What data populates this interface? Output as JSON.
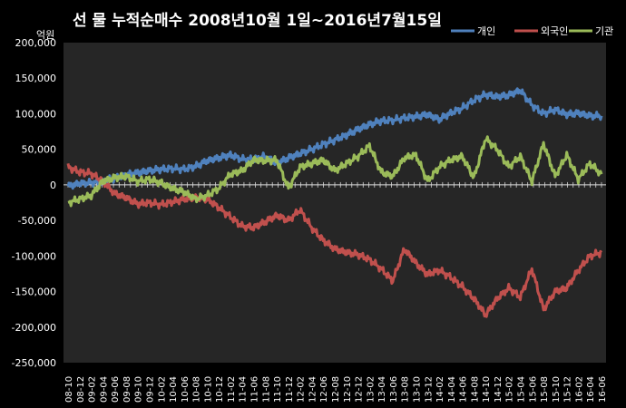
{
  "chart_data": {
    "type": "line",
    "title": "선 물 누적순매수 2008년10월 1일~2016년7월15일",
    "ylabel": "억원",
    "xlabel": "",
    "ylim": [
      -250000,
      200000
    ],
    "yticks": [
      200000,
      150000,
      100000,
      50000,
      0,
      -50000,
      -100000,
      -150000,
      -200000,
      -250000
    ],
    "ytick_labels": [
      "200,000",
      "150,000",
      "100,000",
      "50,000",
      "0",
      "-50,000",
      "-100,000",
      "-150,000",
      "-200,000",
      "-250,000"
    ],
    "x_tick_labels": [
      "08-10",
      "08-12",
      "09-02",
      "09-04",
      "09-06",
      "09-08",
      "09-10",
      "09-12",
      "10-02",
      "10-04",
      "10-06",
      "10-08",
      "10-10",
      "10-12",
      "11-02",
      "11-04",
      "11-06",
      "11-08",
      "11-10",
      "11-12",
      "12-02",
      "12-04",
      "12-06",
      "12-08",
      "12-10",
      "12-12",
      "13-02",
      "13-04",
      "13-06",
      "13-08",
      "13-10",
      "13-12",
      "14-02",
      "14-04",
      "14-06",
      "14-08",
      "14-10",
      "14-12",
      "15-02",
      "15-04",
      "15-06",
      "15-08",
      "15-10",
      "15-12",
      "16-02",
      "16-04",
      "16-06"
    ],
    "grid": false,
    "legend_position": "top-right",
    "background": "#262626",
    "series": [
      {
        "name": "개인",
        "color": "#4f81bd",
        "values": [
          -2000,
          2000,
          3000,
          5000,
          9000,
          14000,
          17000,
          20000,
          22000,
          23000,
          22000,
          26000,
          34000,
          38000,
          42000,
          36000,
          36000,
          40000,
          30000,
          38000,
          44000,
          50000,
          57000,
          63000,
          70000,
          78000,
          85000,
          90000,
          91000,
          94000,
          96000,
          99000,
          92000,
          101000,
          108000,
          119000,
          127000,
          124000,
          126000,
          133000,
          112000,
          100000,
          106000,
          99000,
          101000,
          97000,
          97000
        ]
      },
      {
        "name": "외국인",
        "color": "#c0504d",
        "values": [
          25000,
          18000,
          16000,
          5000,
          -12000,
          -18000,
          -27000,
          -25000,
          -28000,
          -24000,
          -20000,
          -18000,
          -20000,
          -32000,
          -45000,
          -58000,
          -60000,
          -52000,
          -43000,
          -50000,
          -35000,
          -60000,
          -78000,
          -90000,
          -95000,
          -98000,
          -105000,
          -118000,
          -135000,
          -90000,
          -110000,
          -126000,
          -120000,
          -130000,
          -143000,
          -160000,
          -183000,
          -160000,
          -145000,
          -158000,
          -118000,
          -175000,
          -150000,
          -145000,
          -120000,
          -100000,
          -95000
        ]
      },
      {
        "name": "기관",
        "color": "#9bbb59",
        "values": [
          -25000,
          -20000,
          -15000,
          5000,
          10000,
          12000,
          5000,
          8000,
          3000,
          -5000,
          -10000,
          -20000,
          -15000,
          -5000,
          15000,
          20000,
          35000,
          34000,
          35000,
          -5000,
          25000,
          30000,
          35000,
          20000,
          30000,
          40000,
          55000,
          18000,
          12000,
          38000,
          42000,
          5000,
          25000,
          35000,
          40000,
          10000,
          65000,
          50000,
          25000,
          40000,
          5000,
          58000,
          12000,
          42000,
          8000,
          30000,
          15000
        ]
      }
    ]
  }
}
